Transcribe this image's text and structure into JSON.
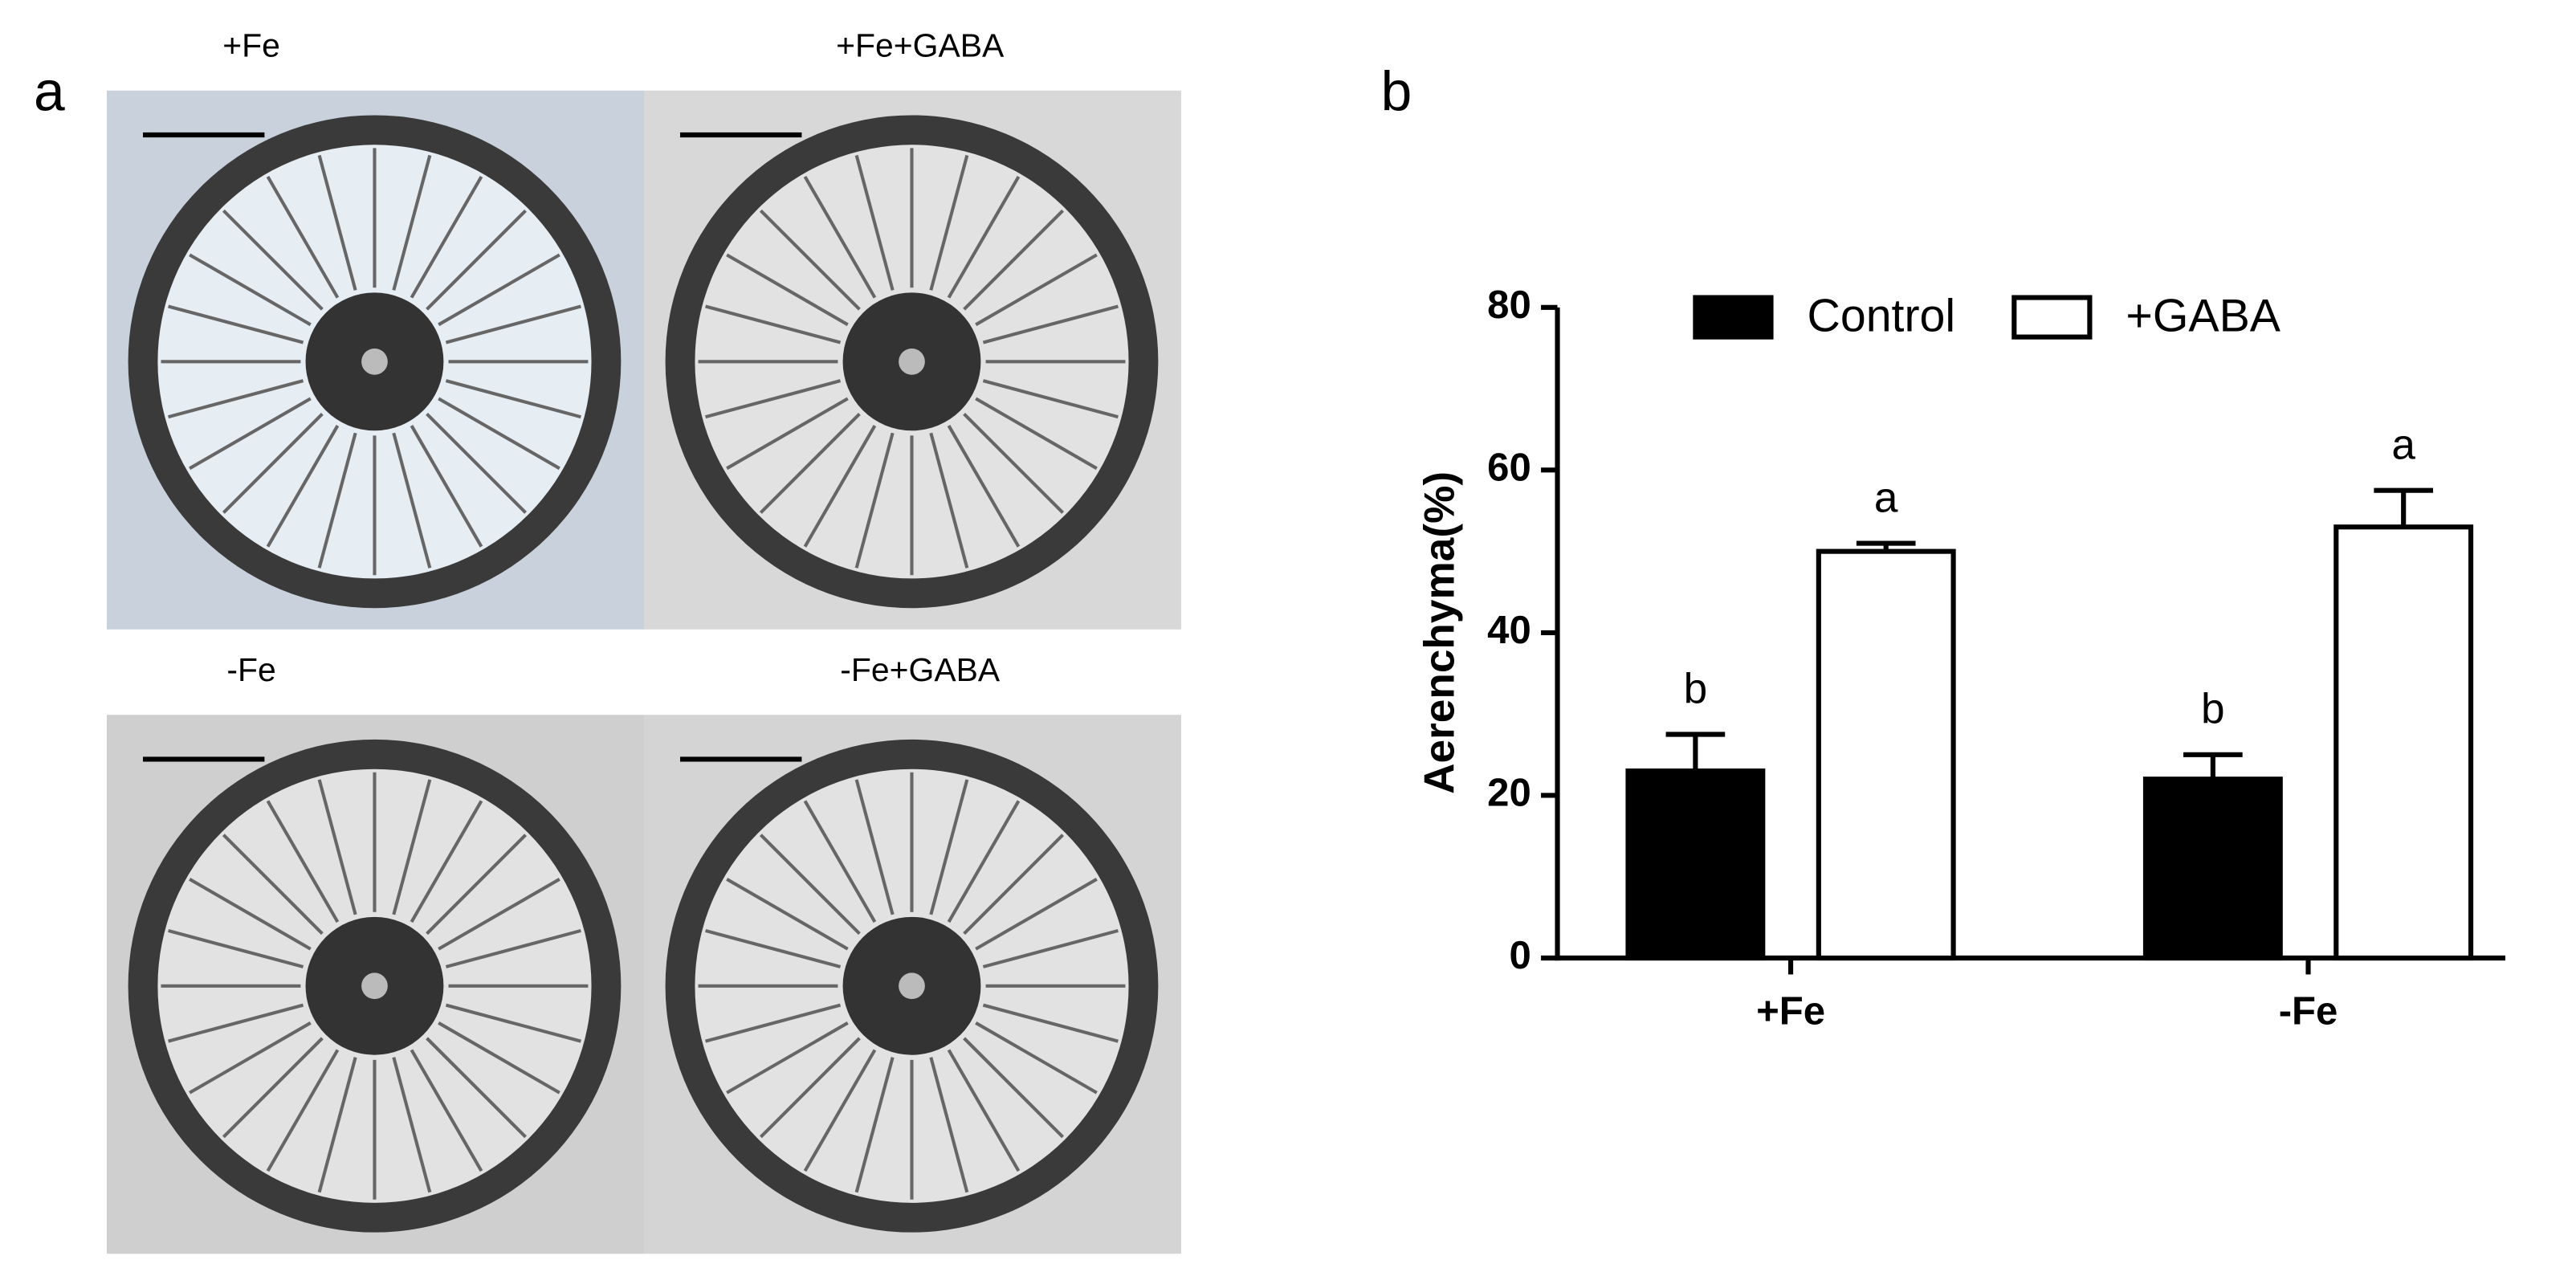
{
  "figure": {
    "panel_a_label": "a",
    "image_labels": [
      "+Fe",
      "+Fe+GABA",
      "-Fe",
      "-Fe+GABA"
    ]
  },
  "chart_data": {
    "type": "bar",
    "panel_label": "b",
    "y_label": "Aerenchyma(%)",
    "categories": [
      "+Fe",
      "-Fe"
    ],
    "series": [
      {
        "name": "Control",
        "color": "#000000",
        "values": [
          23,
          22
        ],
        "errors": [
          4.5,
          3
        ],
        "letters": [
          "b",
          "b"
        ]
      },
      {
        "name": "+GABA",
        "color": "#ffffff",
        "values": [
          50,
          53
        ],
        "errors": [
          1,
          4.5
        ],
        "letters": [
          "a",
          "a"
        ]
      }
    ],
    "ylim": [
      0,
      80
    ],
    "yticks": [
      0,
      20,
      40,
      60,
      80
    ],
    "grid": false,
    "legend": "top"
  }
}
